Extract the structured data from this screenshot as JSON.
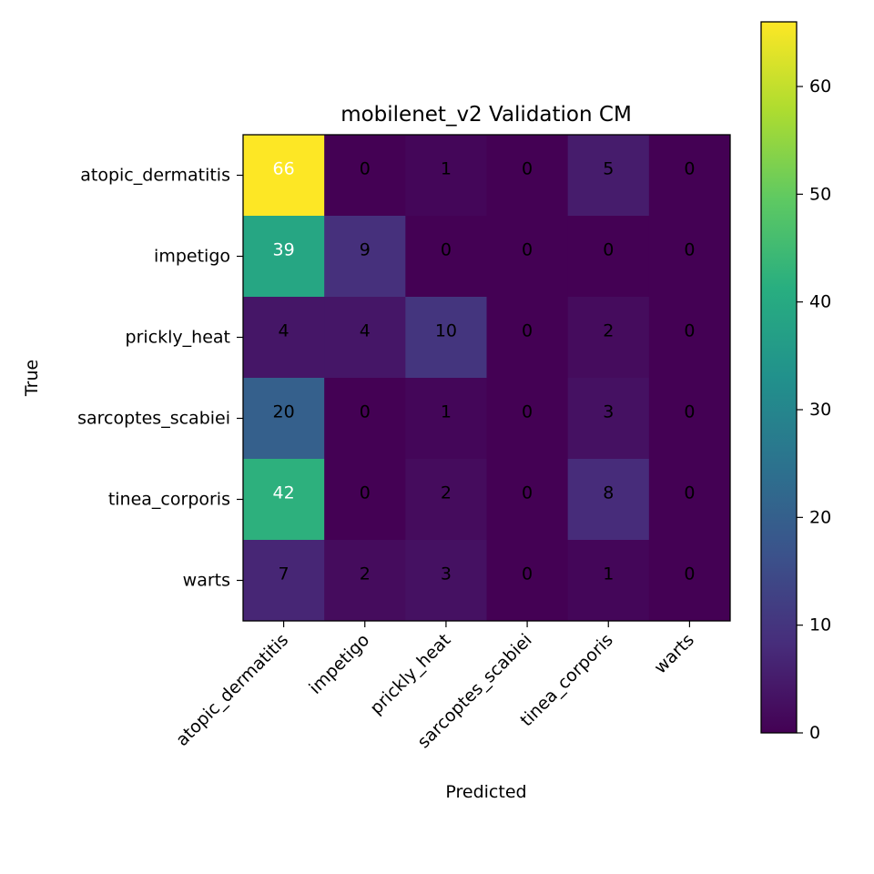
{
  "chart_data": {
    "type": "heatmap",
    "title": "mobilenet_v2 Validation CM",
    "xlabel": "Predicted",
    "ylabel": "True",
    "x_categories": [
      "atopic_dermatitis",
      "impetigo",
      "prickly_heat",
      "sarcoptes_scabiei",
      "tinea_corporis",
      "warts"
    ],
    "y_categories": [
      "atopic_dermatitis",
      "impetigo",
      "prickly_heat",
      "sarcoptes_scabiei",
      "tinea_corporis",
      "warts"
    ],
    "values": [
      [
        66,
        0,
        1,
        0,
        5,
        0
      ],
      [
        39,
        9,
        0,
        0,
        0,
        0
      ],
      [
        4,
        4,
        10,
        0,
        2,
        0
      ],
      [
        20,
        0,
        1,
        0,
        3,
        0
      ],
      [
        42,
        0,
        2,
        0,
        8,
        0
      ],
      [
        7,
        2,
        3,
        0,
        1,
        0
      ]
    ],
    "colormap": "viridis",
    "colorbar": {
      "min": 0,
      "max": 66,
      "ticks": [
        0,
        10,
        20,
        30,
        40,
        50,
        60
      ]
    }
  }
}
